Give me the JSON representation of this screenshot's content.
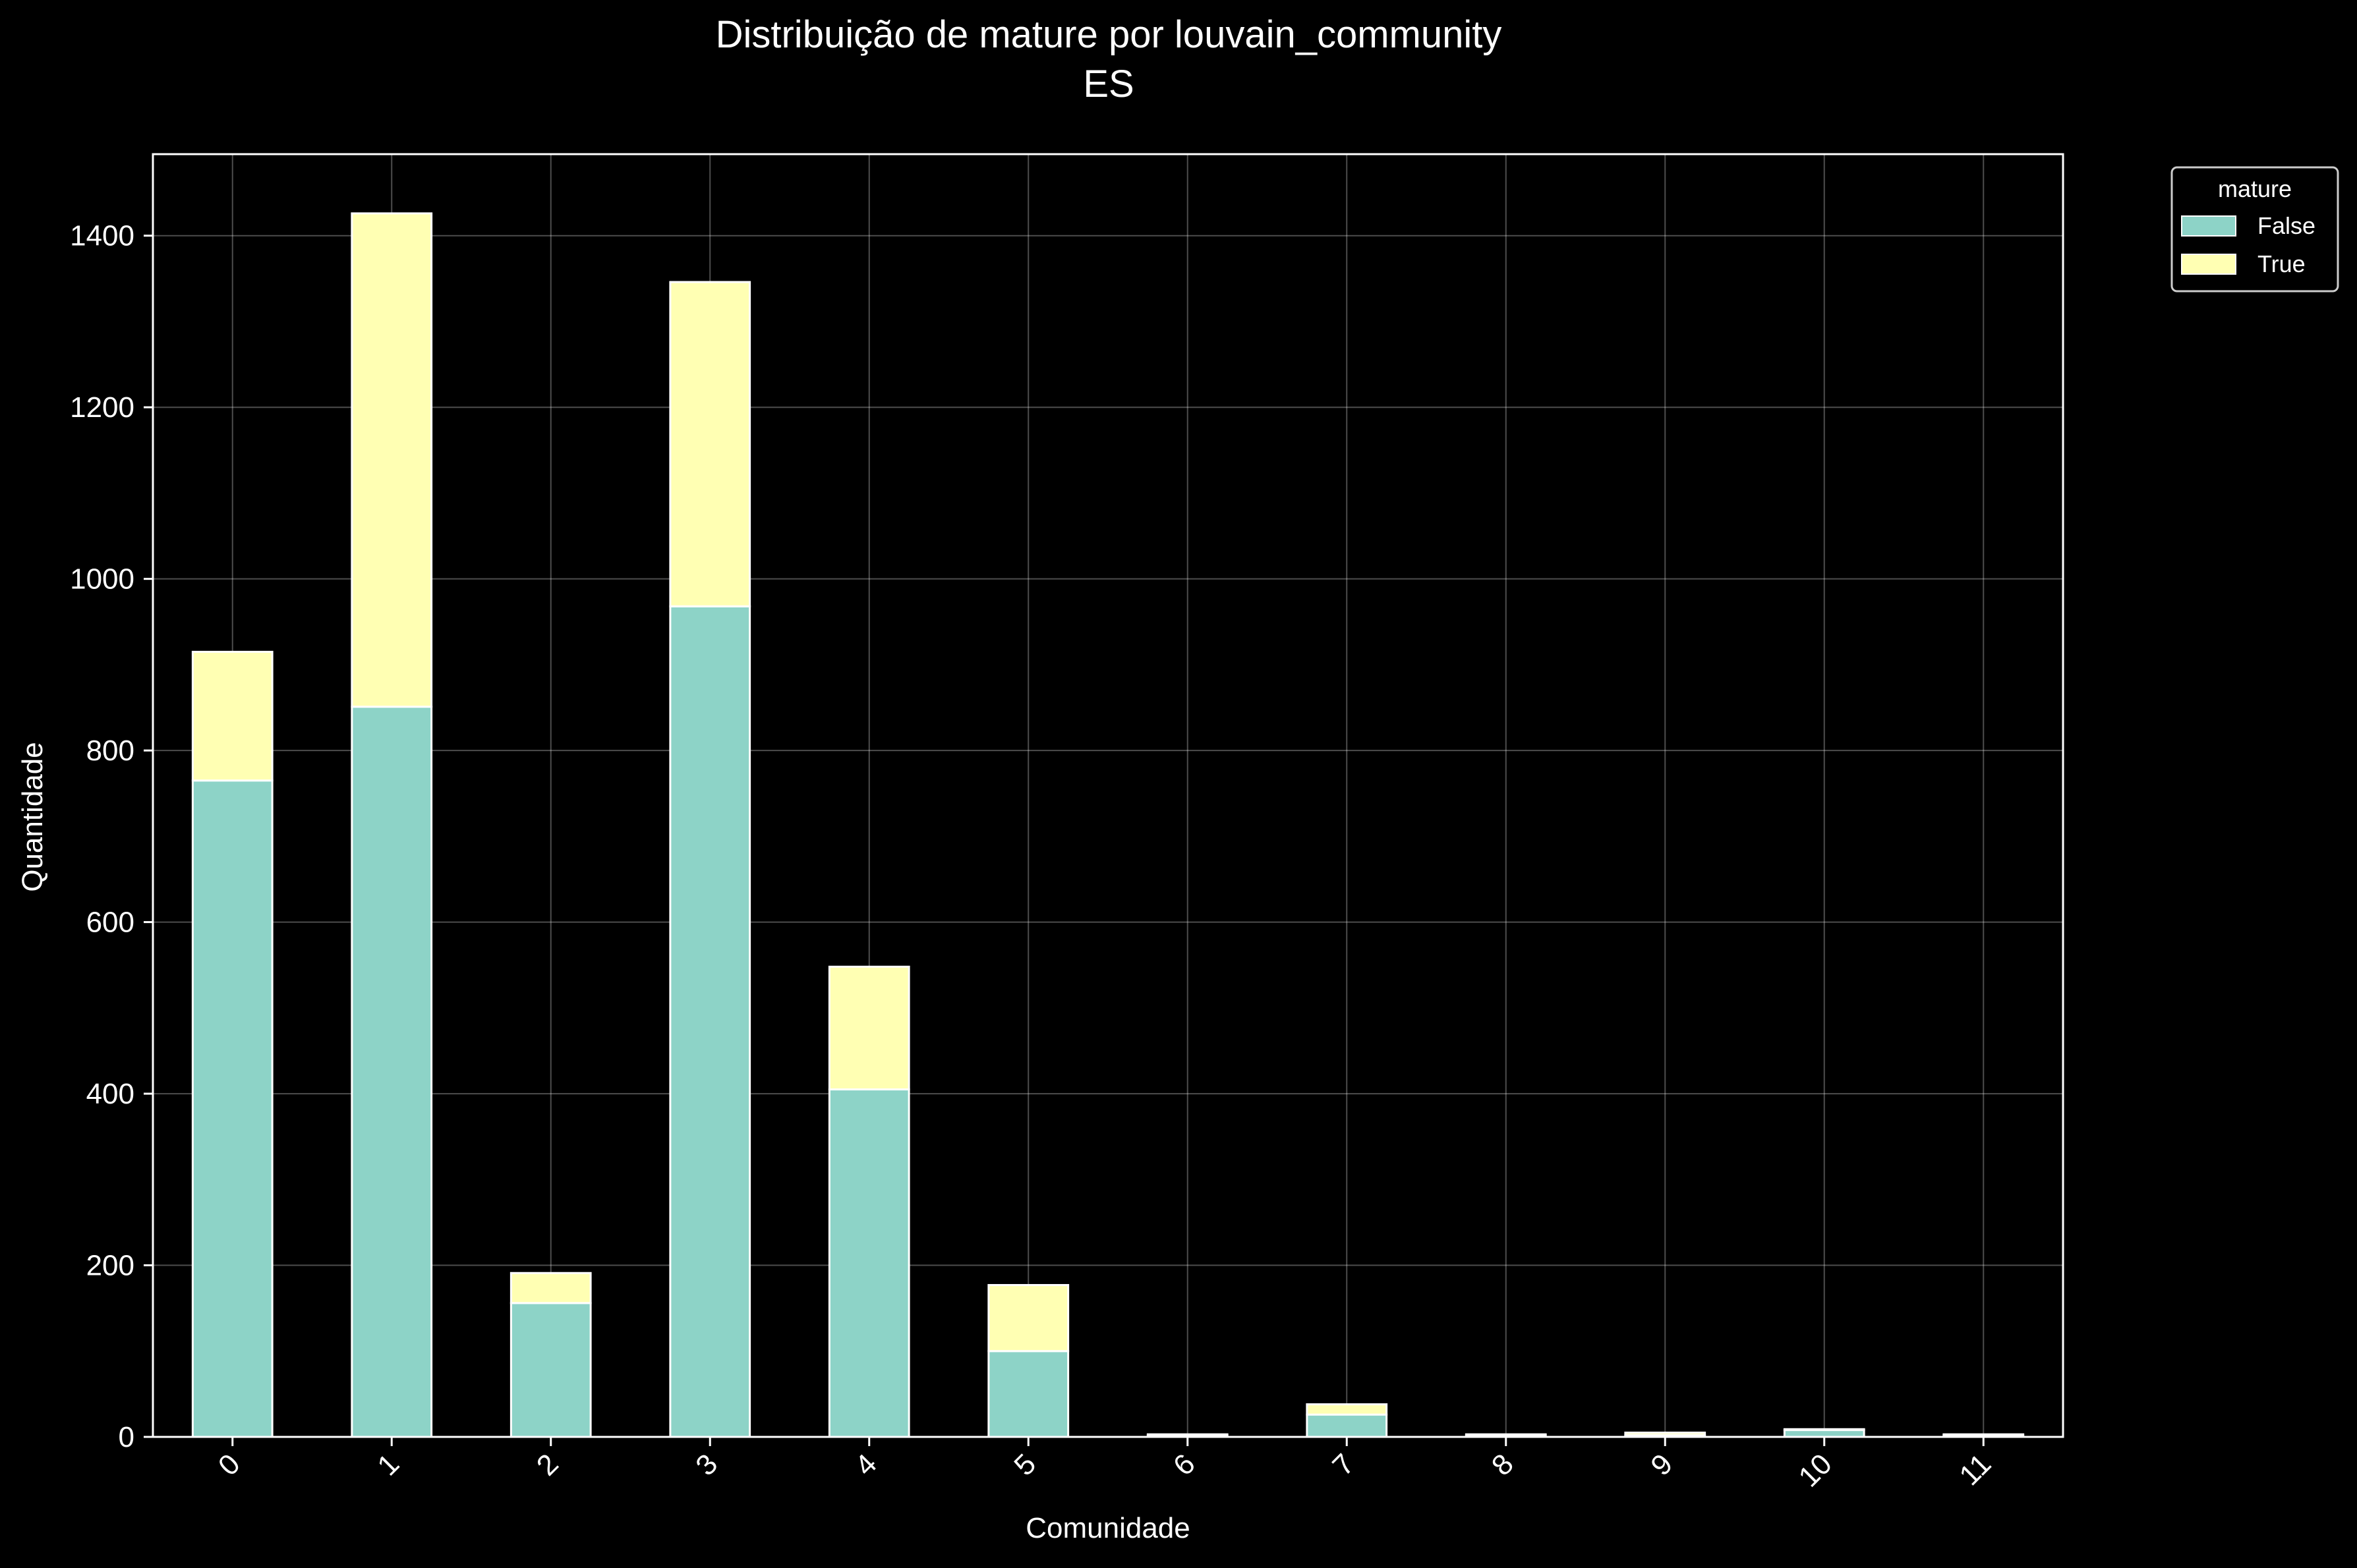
{
  "chart_data": {
    "type": "bar",
    "stacked": true,
    "title": "Distribuição de mature por louvain_community",
    "subtitle": "ES",
    "xlabel": "Comunidade",
    "ylabel": "Quantidade",
    "categories": [
      "0",
      "1",
      "2",
      "3",
      "4",
      "5",
      "6",
      "7",
      "8",
      "9",
      "10",
      "11"
    ],
    "ylim": [
      0,
      1495
    ],
    "yticks": [
      0,
      200,
      400,
      600,
      800,
      1000,
      1200,
      1400
    ],
    "grid": true,
    "legend": {
      "title": "mature",
      "placement": "outside-top-right"
    },
    "series": [
      {
        "name": "False",
        "color": "#8dd3c7",
        "values": [
          765,
          851,
          156,
          968,
          405,
          100,
          2,
          26,
          2,
          2,
          8,
          2
        ]
      },
      {
        "name": "True",
        "color": "#ffffb3",
        "values": [
          150,
          575,
          35,
          378,
          143,
          77,
          1,
          12,
          1,
          3,
          1,
          1
        ]
      }
    ],
    "theme": {
      "background": "#000000",
      "foreground": "#ffffff",
      "grid_color": "#ffffff",
      "bar_edge": "#ffffff"
    }
  }
}
